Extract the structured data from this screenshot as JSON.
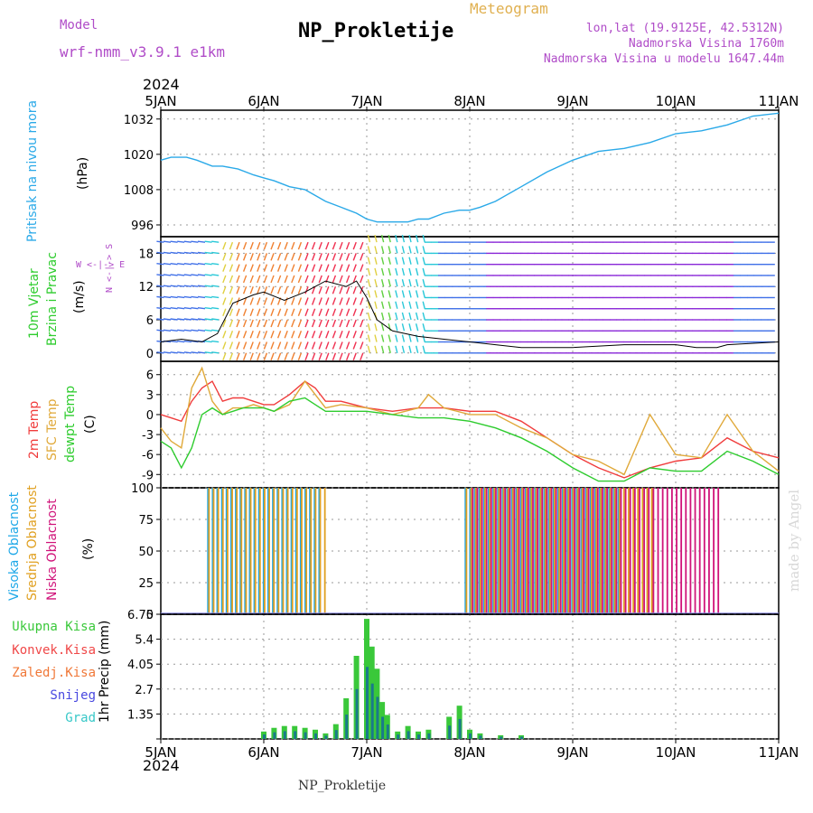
{
  "header": {
    "model_label": "Model",
    "model_name": "wrf-nmm_v3.9.1 e1km",
    "title": "NP_Prokletije",
    "meteogram": "Meteogram",
    "coords": "lon,lat (19.9125E, 42.5312N)",
    "elevation": "Nadmorska Visina 1760m",
    "model_elevation": "Nadmorska Visina u modelu 1647.44m",
    "year": "2024",
    "footer_title": "NP_Prokletije",
    "watermark": "made by Angel"
  },
  "colors": {
    "pressure": "#2aa9e8",
    "temp2m": "#f03c3c",
    "sfc": "#e0a93a",
    "dew": "#2ecc2e",
    "high_cloud": "#1ea8e8",
    "mid_cloud": "#e0a020",
    "low_cloud": "#d0147a",
    "total_precip": "#3ac83a",
    "conv_precip": "#f04848",
    "frozen_precip": "#f07838",
    "snow": "#4848e0",
    "grad": "#38c8c8"
  },
  "chart_data": [
    {
      "type": "line",
      "panel": "pressure",
      "ylabel": "Pritisak na nivou mora",
      "unit": "(hPa)",
      "x_days": [
        0,
        0.1,
        0.25,
        0.35,
        0.5,
        0.6,
        0.75,
        0.9,
        1.0,
        1.1,
        1.25,
        1.4,
        1.5,
        1.6,
        1.75,
        1.9,
        2.0,
        2.1,
        2.25,
        2.4,
        2.5,
        2.6,
        2.75,
        2.9,
        3.0,
        3.1,
        3.25,
        3.5,
        3.75,
        4.0,
        4.25,
        4.5,
        4.75,
        5.0,
        5.25,
        5.5,
        5.75,
        6.0
      ],
      "values": [
        1018,
        1019,
        1019,
        1018,
        1016,
        1016,
        1015,
        1013,
        1012,
        1011,
        1009,
        1008,
        1006,
        1004,
        1002,
        1000,
        998,
        997,
        997,
        997,
        998,
        998,
        1000,
        1001,
        1001,
        1002,
        1004,
        1009,
        1014,
        1018,
        1021,
        1022,
        1024,
        1027,
        1028,
        1030,
        1033,
        1034
      ],
      "ylim": [
        992,
        1035
      ],
      "yticks": [
        996,
        1008,
        1020,
        1032
      ]
    },
    {
      "type": "line",
      "panel": "wind",
      "ylabel": "10m Vjetar Brzina i Pravac",
      "unit": "(m/s)",
      "direction_legend": "N <-|-> S, W <-|-> E",
      "x_days": [
        0,
        0.2,
        0.4,
        0.55,
        0.7,
        0.9,
        1.0,
        1.2,
        1.4,
        1.5,
        1.6,
        1.8,
        1.9,
        2.0,
        2.1,
        2.25,
        2.5,
        2.75,
        3.0,
        3.25,
        3.5,
        4.0,
        4.5,
        5.0,
        5.2,
        5.4,
        5.5,
        6.0
      ],
      "values": [
        2,
        2.5,
        2,
        3.5,
        9,
        10.5,
        11,
        9.5,
        11,
        12,
        13,
        12,
        13,
        10,
        6,
        4,
        3,
        2.5,
        2,
        1.5,
        1,
        1,
        1.5,
        1.5,
        1,
        1,
        1.5,
        2
      ],
      "ylim": [
        -1.5,
        21
      ],
      "yticks": [
        0,
        6,
        12,
        18
      ]
    },
    {
      "type": "line",
      "panel": "temperature",
      "ylabel": "2m Temp / SFC Temp / dewpt Temp",
      "unit": "(C)",
      "x_days": [
        0,
        0.1,
        0.2,
        0.3,
        0.4,
        0.5,
        0.6,
        0.7,
        0.8,
        0.9,
        1.0,
        1.1,
        1.25,
        1.4,
        1.5,
        1.6,
        1.75,
        2.0,
        2.25,
        2.5,
        2.6,
        2.75,
        3.0,
        3.25,
        3.5,
        3.75,
        4.0,
        4.25,
        4.5,
        4.75,
        5.0,
        5.25,
        5.5,
        5.75,
        6.0
      ],
      "series": [
        {
          "name": "2m Temp",
          "values": [
            0,
            -0.5,
            -1,
            2,
            4,
            5,
            2,
            2.5,
            2.5,
            2,
            1.5,
            1.5,
            3,
            5,
            4,
            2,
            2,
            1,
            0.5,
            1,
            1,
            1,
            0.5,
            0.5,
            -1,
            -3.5,
            -6,
            -8,
            -9.5,
            -8,
            -7,
            -6.5,
            -3.5,
            -5.5,
            -6.5
          ]
        },
        {
          "name": "SFC Temp",
          "values": [
            -2,
            -4,
            -5,
            4,
            7,
            2,
            0,
            1,
            1,
            1.5,
            1,
            0.5,
            1.5,
            5,
            3,
            1,
            1.5,
            1,
            0,
            1,
            3,
            1,
            0,
            0,
            -2,
            -3.5,
            -6,
            -7,
            -9,
            0,
            -6,
            -6.5,
            0,
            -5.5,
            -8.5
          ]
        },
        {
          "name": "dewpt Temp",
          "values": [
            -4,
            -5,
            -8,
            -5,
            0,
            1,
            0,
            0.5,
            1,
            1,
            1,
            0.5,
            2,
            2.5,
            1.5,
            0.5,
            0.5,
            0.5,
            0,
            -0.5,
            -0.5,
            -0.5,
            -1,
            -2,
            -3.5,
            -5.5,
            -8,
            -10,
            -10,
            -8,
            -8.5,
            -8.5,
            -5.5,
            -7,
            -9
          ]
        }
      ],
      "ylim": [
        -11,
        8
      ],
      "yticks": [
        6,
        3,
        0,
        -3,
        -6,
        -9
      ]
    },
    {
      "type": "bar",
      "panel": "clouds",
      "ylabel": "Visoka Oblacnost / Srednja Oblacnost / Niska Oblacnost",
      "unit": "(%)",
      "series": [
        {
          "name": "Visoka Oblacnost",
          "ranges_days": [
            [
              0.45,
              1.55
            ],
            [
              2.95,
              4.45
            ]
          ],
          "value": 100
        },
        {
          "name": "Srednja Oblacnost",
          "ranges_days": [
            [
              0.45,
              1.6
            ],
            [
              2.95,
              4.75
            ]
          ],
          "value": 100
        },
        {
          "name": "Niska Oblacnost",
          "ranges_days": [
            [
              3.0,
              5.4
            ]
          ],
          "value": 100
        }
      ],
      "ylim": [
        0,
        100
      ],
      "yticks": [
        0,
        25,
        50,
        75,
        100
      ]
    },
    {
      "type": "bar",
      "panel": "precip",
      "ylabel": "1hr Precip (mm)",
      "legend": [
        "Ukupna Kisa",
        "Konvek.Kisa",
        "Zaledj.Kisa",
        "Snijeg",
        "Grad"
      ],
      "x_days": [
        1.0,
        1.1,
        1.2,
        1.3,
        1.4,
        1.5,
        1.6,
        1.7,
        1.8,
        1.9,
        2.0,
        2.05,
        2.1,
        2.15,
        2.2,
        2.3,
        2.4,
        2.5,
        2.6,
        2.8,
        2.9,
        3.0,
        3.1,
        3.3,
        3.5
      ],
      "values": [
        0.4,
        0.6,
        0.7,
        0.7,
        0.6,
        0.5,
        0.3,
        0.8,
        2.2,
        4.5,
        6.5,
        5.0,
        3.8,
        2.0,
        1.3,
        0.4,
        0.7,
        0.4,
        0.5,
        1.2,
        1.8,
        0.5,
        0.3,
        0.2,
        0.2
      ],
      "ylim": [
        0,
        6.75
      ],
      "yticks": [
        0,
        1.35,
        2.7,
        4.05,
        5.4,
        6.75
      ]
    }
  ],
  "x_axis": {
    "labels": [
      "5JAN",
      "6JAN",
      "7JAN",
      "8JAN",
      "9JAN",
      "10JAN",
      "11JAN"
    ]
  },
  "legend_labels": {
    "pressure_label": "Pritisak na nivou mora",
    "pressure_unit": "(hPa)",
    "wind_label1": "10m Vjetar",
    "wind_label2": "Brzina i Pravac",
    "wind_unit": "(m/s)",
    "temp2m": "2m Temp",
    "sfc": "SFC Temp",
    "dew": "dewpt Temp",
    "temp_unit": "(C)",
    "high": "Visoka Oblacnost",
    "mid": "Srednja Oblacnost",
    "low": "Niska Oblacnost",
    "cloud_unit": "(%)",
    "total": "Ukupna Kisa",
    "conv": "Konvek.Kisa",
    "frozen": "Zaledj.Kisa",
    "snow": "Snijeg",
    "grad": "Grad",
    "precip_unit": "1hr Precip (mm)"
  }
}
